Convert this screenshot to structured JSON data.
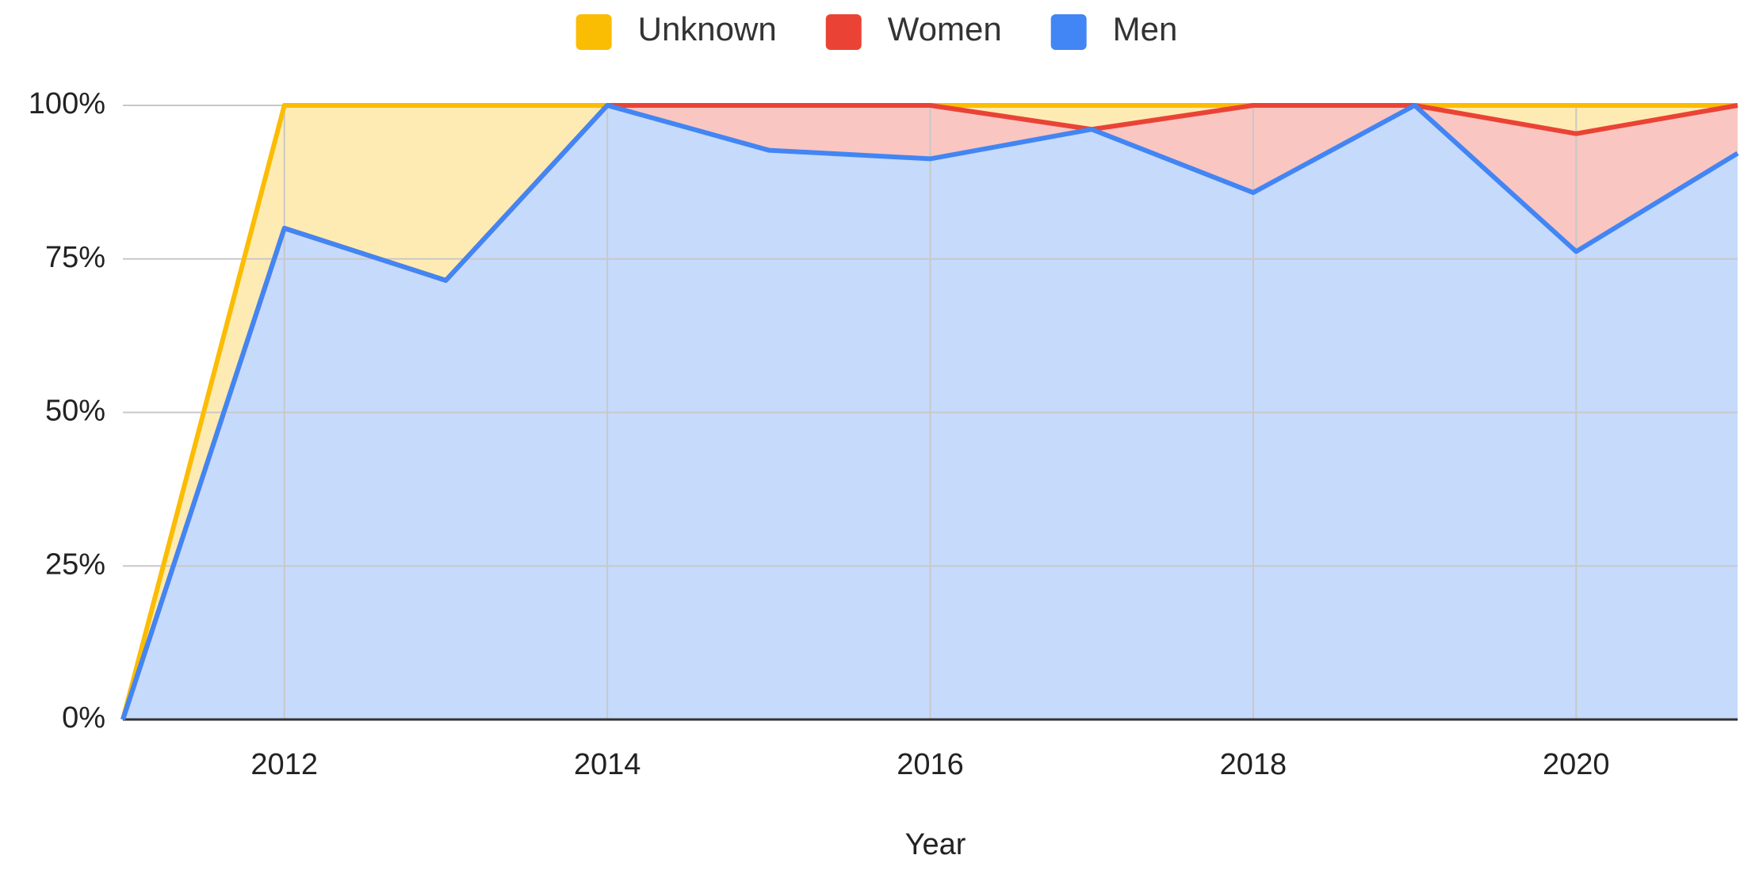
{
  "chart_data": {
    "type": "stacked-area-100",
    "x_label": "Year",
    "x": [
      2011,
      2012,
      2013,
      2014,
      2015,
      2016,
      2017,
      2018,
      2019,
      2020,
      2021
    ],
    "series": [
      {
        "name": "Men",
        "color": "#4285f4",
        "values": [
          0,
          80,
          71.5,
          100,
          92.7,
          91.3,
          96.1,
          85.8,
          100,
          76.2,
          92.2
        ]
      },
      {
        "name": "Women",
        "color": "#ea4335",
        "values": [
          0,
          0,
          0,
          0,
          7.3,
          8.7,
          0,
          14.2,
          0,
          19.2,
          7.8
        ]
      },
      {
        "name": "Unknown",
        "color": "#fbbc04",
        "values": [
          0,
          20,
          28.5,
          0,
          0,
          0,
          3.9,
          0,
          0,
          4.6,
          0
        ]
      }
    ],
    "xlim": [
      2011,
      2021
    ],
    "xticks": [
      2012,
      2014,
      2016,
      2018,
      2020
    ],
    "ylim": [
      0,
      100
    ],
    "yticks": [
      {
        "value": 0,
        "label": "0%"
      },
      {
        "value": 25,
        "label": "25%"
      },
      {
        "value": 50,
        "label": "50%"
      },
      {
        "value": 75,
        "label": "75%"
      },
      {
        "value": 100,
        "label": "100%"
      }
    ],
    "grid": true,
    "legend": "top"
  }
}
